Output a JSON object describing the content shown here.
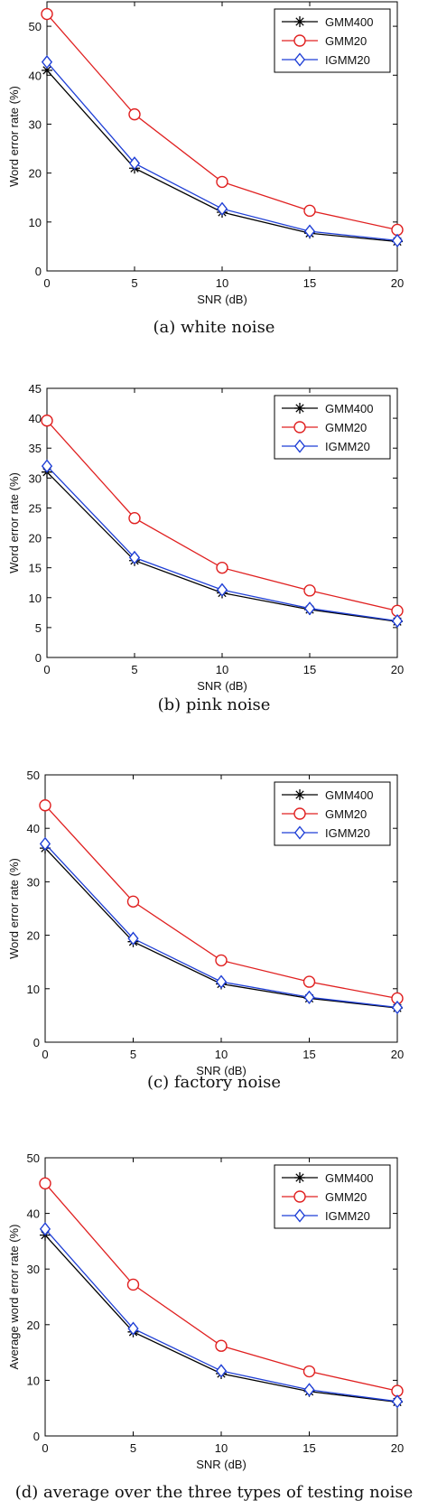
{
  "chart_data": [
    {
      "type": "line",
      "caption": "(a) white noise",
      "xlabel": "SNR (dB)",
      "ylabel": "Word error rate (%)",
      "x": [
        0,
        5,
        10,
        15,
        20
      ],
      "xticks": [
        "0",
        "5",
        "10",
        "15",
        "20"
      ],
      "xlim": [
        0,
        20
      ],
      "ylim": [
        0,
        55
      ],
      "yticks": [
        0,
        10,
        20,
        30,
        40,
        50
      ],
      "legend_position": "top-right",
      "series": [
        {
          "name": "GMM400",
          "color": "#000000",
          "marker": "star",
          "values": [
            41.0,
            21.0,
            12.0,
            7.7,
            6.0
          ]
        },
        {
          "name": "GMM20",
          "color": "#e02020",
          "marker": "circle",
          "values": [
            52.5,
            32.0,
            18.2,
            12.3,
            8.4
          ]
        },
        {
          "name": "IGMM20",
          "color": "#1f3fd6",
          "marker": "diamond",
          "values": [
            42.7,
            22.0,
            12.7,
            8.1,
            6.2
          ]
        }
      ]
    },
    {
      "type": "line",
      "caption": "(b) pink noise",
      "xlabel": "SNR (dB)",
      "ylabel": "Word error rate (%)",
      "x": [
        0,
        5,
        10,
        15,
        20
      ],
      "xticks": [
        "0",
        "5",
        "10",
        "15",
        "20"
      ],
      "xlim": [
        0,
        20
      ],
      "ylim": [
        0,
        45
      ],
      "yticks": [
        0,
        5,
        10,
        15,
        20,
        25,
        30,
        35,
        40,
        45
      ],
      "legend_position": "top-right",
      "series": [
        {
          "name": "GMM400",
          "color": "#000000",
          "marker": "star",
          "values": [
            31.0,
            16.2,
            10.8,
            8.0,
            6.0
          ]
        },
        {
          "name": "GMM20",
          "color": "#e02020",
          "marker": "circle",
          "values": [
            39.6,
            23.3,
            15.0,
            11.2,
            7.8
          ]
        },
        {
          "name": "IGMM20",
          "color": "#1f3fd6",
          "marker": "diamond",
          "values": [
            32.0,
            16.7,
            11.3,
            8.2,
            6.1
          ]
        }
      ]
    },
    {
      "type": "line",
      "caption": "(c) factory noise",
      "xlabel": "SNR (dB)",
      "ylabel": "Word error rate (%)",
      "x": [
        0,
        5,
        10,
        15,
        20
      ],
      "xticks": [
        "0",
        "5",
        "10",
        "15",
        "20"
      ],
      "xlim": [
        0,
        20
      ],
      "ylim": [
        0,
        50
      ],
      "yticks": [
        0,
        10,
        20,
        30,
        40,
        50
      ],
      "legend_position": "top-right",
      "series": [
        {
          "name": "GMM400",
          "color": "#000000",
          "marker": "star",
          "values": [
            36.3,
            18.8,
            10.9,
            8.2,
            6.4
          ]
        },
        {
          "name": "GMM20",
          "color": "#e02020",
          "marker": "circle",
          "values": [
            44.3,
            26.3,
            15.3,
            11.3,
            8.2
          ]
        },
        {
          "name": "IGMM20",
          "color": "#1f3fd6",
          "marker": "diamond",
          "values": [
            37.1,
            19.4,
            11.3,
            8.4,
            6.5
          ]
        }
      ]
    },
    {
      "type": "line",
      "caption": "(d) average over the three types of testing noise",
      "xlabel": "SNR (dB)",
      "ylabel": "Average word error rate (%)",
      "x": [
        0,
        5,
        10,
        15,
        20
      ],
      "xticks": [
        "0",
        "5",
        "10",
        "15",
        "20"
      ],
      "xlim": [
        0,
        20
      ],
      "ylim": [
        0,
        50
      ],
      "yticks": [
        0,
        10,
        20,
        30,
        40,
        50
      ],
      "legend_position": "top-right",
      "series": [
        {
          "name": "GMM400",
          "color": "#000000",
          "marker": "star",
          "values": [
            36.1,
            18.7,
            11.2,
            8.0,
            6.1
          ]
        },
        {
          "name": "GMM20",
          "color": "#e02020",
          "marker": "circle",
          "values": [
            45.4,
            27.2,
            16.2,
            11.6,
            8.1
          ]
        },
        {
          "name": "IGMM20",
          "color": "#1f3fd6",
          "marker": "diamond",
          "values": [
            37.2,
            19.3,
            11.7,
            8.3,
            6.2
          ]
        }
      ]
    }
  ]
}
